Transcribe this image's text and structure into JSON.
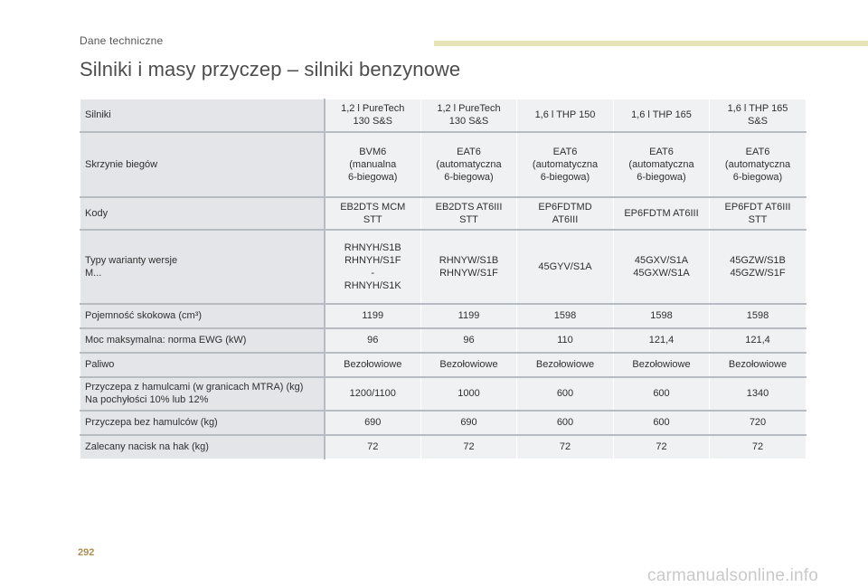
{
  "header": {
    "section_label": "Dane techniczne",
    "title": "Silniki i masy przyczep – silniki benzynowe"
  },
  "table": {
    "rows": [
      {
        "label": "Silniki",
        "values": [
          "1,2 l PureTech\n130 S&S",
          "1,2 l PureTech\n130 S&S",
          "1,6 l THP 150",
          "1,6 l THP 165",
          "1,6 l THP 165\nS&S"
        ]
      },
      {
        "label": "Skrzynie biegów",
        "values": [
          "BVM6\n(manualna\n6-biegowa)",
          "EAT6\n(automatyczna\n6-biegowa)",
          "EAT6\n(automatyczna\n6-biegowa)",
          "EAT6\n(automatyczna\n6-biegowa)",
          "EAT6\n(automatyczna\n6-biegowa)"
        ]
      },
      {
        "label": "Kody",
        "values": [
          "EB2DTS MCM\nSTT",
          "EB2DTS AT6III\nSTT",
          "EP6FDTMD\nAT6III",
          "EP6FDTM AT6III",
          "EP6FDT AT6III\nSTT"
        ]
      },
      {
        "label": "Typy warianty wersje\nM...",
        "values": [
          "RHNYH/S1B\nRHNYH/S1F\n-\nRHNYH/S1K",
          "RHNYW/S1B\nRHNYW/S1F",
          "45GYV/S1A",
          "45GXV/S1A\n45GXW/S1A",
          "45GZW/S1B\n45GZW/S1F"
        ]
      },
      {
        "label": "Pojemność skokowa (cm³)",
        "values": [
          "1199",
          "1199",
          "1598",
          "1598",
          "1598"
        ]
      },
      {
        "label": "Moc maksymalna: norma EWG (kW)",
        "values": [
          "96",
          "96",
          "110",
          "121,4",
          "121,4"
        ]
      },
      {
        "label": "Paliwo",
        "values": [
          "Bezołowiowe",
          "Bezołowiowe",
          "Bezołowiowe",
          "Bezołowiowe",
          "Bezołowiowe"
        ]
      },
      {
        "label": "Przyczepa z hamulcami (w granicach MTRA) (kg)\nNa pochyłości 10% lub 12%",
        "values": [
          "1200/1100",
          "1000",
          "600",
          "600",
          "1340"
        ]
      },
      {
        "label": "Przyczepa bez hamulców (kg)",
        "values": [
          "690",
          "690",
          "600",
          "600",
          "720"
        ]
      },
      {
        "label": "Zalecany nacisk na hak (kg)",
        "values": [
          "72",
          "72",
          "72",
          "72",
          "72"
        ]
      }
    ]
  },
  "footer": {
    "page_number": "292",
    "watermark": "carmanualsonline.info"
  },
  "colors": {
    "accent_bar": "#e6e3b5",
    "cell_bg": "#f0f1f2",
    "header_cell_bg": "#e3e5e8",
    "page_number": "#b08b50"
  }
}
